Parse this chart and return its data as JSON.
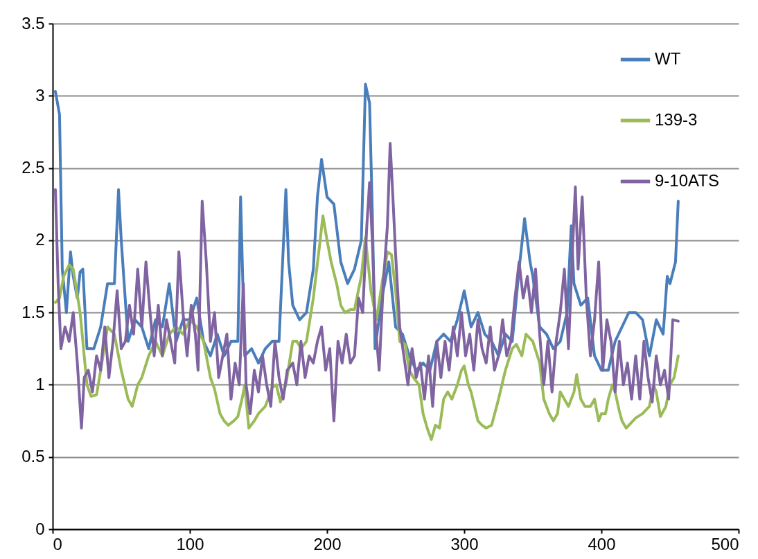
{
  "chart_data": {
    "type": "line",
    "xlim": [
      0,
      500
    ],
    "xticks": [
      0,
      100,
      200,
      300,
      400,
      500
    ],
    "ylim": [
      0,
      3.5
    ],
    "yticks": [
      0,
      0.5,
      1,
      1.5,
      2,
      2.5,
      3,
      3.5
    ],
    "grid": "y",
    "legend": "top right",
    "line_style": "solid",
    "marker": "none",
    "series": [
      {
        "name": "WT",
        "color": "#4a7ebb",
        "x": [
          2,
          5,
          7,
          10,
          13,
          15,
          18,
          20,
          22,
          25,
          30,
          35,
          40,
          45,
          48,
          50,
          55,
          60,
          65,
          70,
          75,
          80,
          85,
          90,
          95,
          100,
          105,
          110,
          115,
          120,
          125,
          130,
          135,
          137,
          140,
          145,
          150,
          155,
          160,
          165,
          170,
          172,
          175,
          180,
          185,
          190,
          193,
          196,
          200,
          205,
          210,
          215,
          220,
          225,
          228,
          231,
          233,
          235,
          240,
          245,
          250,
          255,
          260,
          265,
          270,
          275,
          280,
          285,
          290,
          295,
          300,
          305,
          310,
          315,
          320,
          325,
          330,
          335,
          340,
          344,
          348,
          350,
          355,
          360,
          365,
          370,
          375,
          378,
          380,
          385,
          390,
          395,
          400,
          405,
          410,
          415,
          420,
          425,
          430,
          435,
          440,
          445,
          448,
          450,
          454,
          456
        ],
        "values": [
          3.03,
          2.87,
          1.8,
          1.5,
          1.92,
          1.75,
          1.6,
          1.78,
          1.8,
          1.25,
          1.25,
          1.4,
          1.7,
          1.7,
          2.35,
          2.0,
          1.3,
          1.45,
          1.4,
          1.25,
          1.45,
          1.4,
          1.7,
          1.3,
          1.45,
          1.45,
          1.6,
          1.3,
          1.2,
          1.35,
          1.2,
          1.3,
          1.3,
          2.3,
          1.2,
          1.25,
          1.15,
          1.25,
          1.3,
          1.3,
          2.35,
          1.85,
          1.55,
          1.45,
          1.5,
          1.8,
          2.3,
          2.56,
          2.3,
          2.25,
          1.85,
          1.7,
          1.8,
          2.0,
          3.08,
          2.95,
          2.2,
          1.25,
          1.6,
          1.85,
          1.4,
          1.35,
          1.2,
          1.1,
          1.15,
          1.1,
          1.3,
          1.35,
          1.3,
          1.45,
          1.65,
          1.4,
          1.5,
          1.35,
          1.3,
          1.2,
          1.35,
          1.3,
          1.8,
          2.15,
          1.85,
          1.75,
          1.4,
          1.35,
          1.25,
          1.3,
          1.5,
          2.1,
          1.7,
          1.55,
          1.6,
          1.2,
          1.1,
          1.1,
          1.3,
          1.4,
          1.5,
          1.5,
          1.45,
          1.2,
          1.45,
          1.35,
          1.75,
          1.7,
          1.85,
          2.27
        ]
      },
      {
        "name": "139-3",
        "color": "#9bbb59",
        "x": [
          2,
          5,
          8,
          12,
          15,
          20,
          25,
          28,
          32,
          35,
          40,
          45,
          50,
          55,
          58,
          62,
          65,
          70,
          75,
          80,
          85,
          90,
          95,
          100,
          105,
          110,
          115,
          118,
          122,
          125,
          128,
          132,
          135,
          138,
          140,
          143,
          147,
          150,
          155,
          160,
          163,
          166,
          170,
          175,
          178,
          181,
          185,
          190,
          195,
          197,
          200,
          203,
          207,
          210,
          213,
          217,
          220,
          225,
          228,
          232,
          236,
          240,
          244,
          247,
          250,
          253,
          257,
          260,
          263,
          267,
          270,
          273,
          276,
          279,
          282,
          285,
          288,
          291,
          295,
          298,
          300,
          303,
          305,
          310,
          313,
          316,
          320,
          325,
          330,
          335,
          338,
          342,
          345,
          350,
          355,
          358,
          362,
          365,
          368,
          370,
          373,
          376,
          380,
          382,
          385,
          388,
          392,
          395,
          398,
          400,
          403,
          405,
          408,
          410,
          413,
          415,
          418,
          420,
          425,
          430,
          435,
          438,
          440,
          443,
          447,
          450,
          453,
          456
        ],
        "values": [
          1.57,
          1.6,
          1.75,
          1.83,
          1.8,
          1.5,
          1.0,
          0.92,
          0.93,
          1.1,
          1.4,
          1.35,
          1.1,
          0.9,
          0.85,
          1.0,
          1.05,
          1.2,
          1.3,
          1.2,
          1.35,
          1.4,
          1.35,
          1.45,
          1.4,
          1.3,
          1.05,
          0.97,
          0.8,
          0.75,
          0.72,
          0.75,
          0.78,
          0.9,
          1.0,
          0.7,
          0.75,
          0.8,
          0.85,
          0.98,
          1.0,
          0.88,
          1.0,
          1.3,
          1.3,
          1.25,
          1.3,
          1.6,
          2.0,
          2.17,
          2.0,
          1.85,
          1.7,
          1.55,
          1.5,
          1.52,
          1.52,
          1.75,
          2.02,
          1.65,
          1.45,
          1.7,
          1.92,
          1.9,
          1.65,
          1.3,
          1.28,
          1.1,
          1.05,
          1.0,
          0.8,
          0.7,
          0.62,
          0.72,
          0.7,
          0.9,
          0.95,
          0.9,
          1.0,
          1.1,
          1.13,
          1.0,
          0.95,
          0.75,
          0.72,
          0.7,
          0.72,
          0.9,
          1.1,
          1.25,
          1.28,
          1.2,
          1.35,
          1.3,
          1.15,
          0.9,
          0.8,
          0.75,
          0.8,
          0.95,
          0.9,
          0.85,
          0.95,
          1.07,
          0.9,
          0.85,
          0.85,
          0.9,
          0.75,
          0.8,
          0.8,
          0.9,
          1.0,
          0.95,
          0.82,
          0.75,
          0.7,
          0.72,
          0.77,
          0.8,
          0.85,
          1.0,
          0.95,
          0.78,
          0.85,
          1.0,
          1.05,
          1.2
        ]
      },
      {
        "name": "9-10ATS",
        "color": "#8064a2",
        "x": [
          2,
          4,
          6,
          9,
          12,
          15,
          18,
          21,
          23,
          26,
          29,
          32,
          35,
          38,
          41,
          44,
          47,
          50,
          53,
          56,
          59,
          62,
          65,
          68,
          71,
          74,
          77,
          80,
          83,
          86,
          89,
          92,
          95,
          98,
          101,
          104,
          106,
          109,
          112,
          115,
          118,
          121,
          124,
          127,
          130,
          133,
          136,
          139,
          141,
          144,
          147,
          150,
          153,
          156,
          159,
          162,
          165,
          168,
          171,
          175,
          178,
          181,
          184,
          187,
          190,
          193,
          196,
          199,
          202,
          205,
          208,
          211,
          214,
          217,
          220,
          223,
          226,
          229,
          231,
          233,
          235,
          238,
          241,
          244,
          246,
          248,
          250,
          253,
          256,
          259,
          262,
          265,
          268,
          271,
          274,
          277,
          280,
          283,
          286,
          289,
          292,
          295,
          298,
          301,
          304,
          307,
          310,
          313,
          316,
          319,
          322,
          325,
          328,
          331,
          334,
          337,
          340,
          343,
          346,
          349,
          352,
          355,
          358,
          361,
          364,
          367,
          370,
          373,
          376,
          379,
          381,
          383,
          386,
          389,
          392,
          395,
          398,
          401,
          404,
          407,
          410,
          413,
          416,
          419,
          422,
          425,
          428,
          431,
          434,
          437,
          440,
          443,
          446,
          449,
          452,
          456
        ],
        "values": [
          2.35,
          1.7,
          1.25,
          1.4,
          1.3,
          1.5,
          1.15,
          0.7,
          1.05,
          1.1,
          0.95,
          1.2,
          1.1,
          1.4,
          1.05,
          1.3,
          1.65,
          1.25,
          1.3,
          1.55,
          1.35,
          1.8,
          1.4,
          1.85,
          1.5,
          1.2,
          1.55,
          1.2,
          1.45,
          1.3,
          1.15,
          1.92,
          1.5,
          1.2,
          1.55,
          1.35,
          1.1,
          2.27,
          1.85,
          1.3,
          1.5,
          1.05,
          1.2,
          1.35,
          0.9,
          1.15,
          1.0,
          1.7,
          1.0,
          0.8,
          1.1,
          0.95,
          1.2,
          1.0,
          0.85,
          1.3,
          1.05,
          0.9,
          1.1,
          1.15,
          1.0,
          1.3,
          1.05,
          1.2,
          1.15,
          1.3,
          1.4,
          1.1,
          1.25,
          0.75,
          1.3,
          1.15,
          1.35,
          1.15,
          1.2,
          1.6,
          1.5,
          2.1,
          2.4,
          2.0,
          1.45,
          1.1,
          1.7,
          2.1,
          2.67,
          2.3,
          1.9,
          1.4,
          1.2,
          1.0,
          1.25,
          1.05,
          1.15,
          0.9,
          1.2,
          0.85,
          1.3,
          1.05,
          1.3,
          1.1,
          1.4,
          1.2,
          1.5,
          1.2,
          1.35,
          1.1,
          1.45,
          1.25,
          1.15,
          1.4,
          1.1,
          1.2,
          1.45,
          1.2,
          1.3,
          1.6,
          1.85,
          1.6,
          1.75,
          1.5,
          1.8,
          1.35,
          1.0,
          1.3,
          0.95,
          1.3,
          1.5,
          1.8,
          1.25,
          1.95,
          2.37,
          1.8,
          2.3,
          1.6,
          1.2,
          1.45,
          1.85,
          1.1,
          1.45,
          1.3,
          0.95,
          1.3,
          1.0,
          1.15,
          0.9,
          1.2,
          0.9,
          1.3,
          1.05,
          0.88,
          1.2,
          1.0,
          1.1,
          0.9,
          1.45,
          1.44
        ]
      }
    ]
  }
}
